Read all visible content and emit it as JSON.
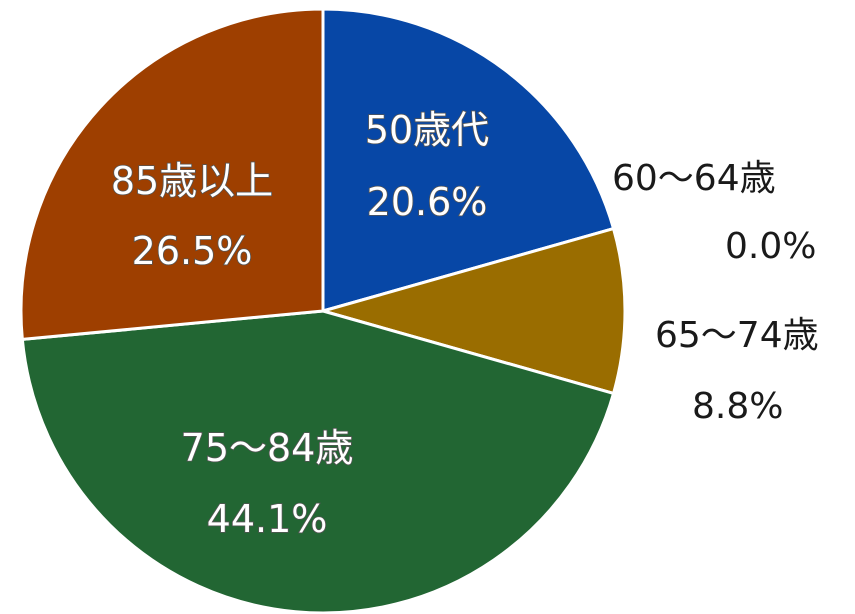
{
  "chart_data": {
    "type": "pie",
    "slices": [
      {
        "label": "50歳代",
        "value": 20.6,
        "value_label": "20.6%",
        "color": "#0747a6"
      },
      {
        "label": "60～64歳",
        "value": 0.0,
        "value_label": "0.0%",
        "color": "#c9a227"
      },
      {
        "label": "65～74歳",
        "value": 8.8,
        "value_label": "8.8%",
        "color": "#9a6d00"
      },
      {
        "label": "75～84歳",
        "value": 44.1,
        "value_label": "44.1%",
        "color": "#226633"
      },
      {
        "label": "85歳以上",
        "value": 26.5,
        "value_label": "26.5%",
        "color": "#9e3f00"
      }
    ],
    "start": "top",
    "direction": "clockwise",
    "legend": "none"
  }
}
